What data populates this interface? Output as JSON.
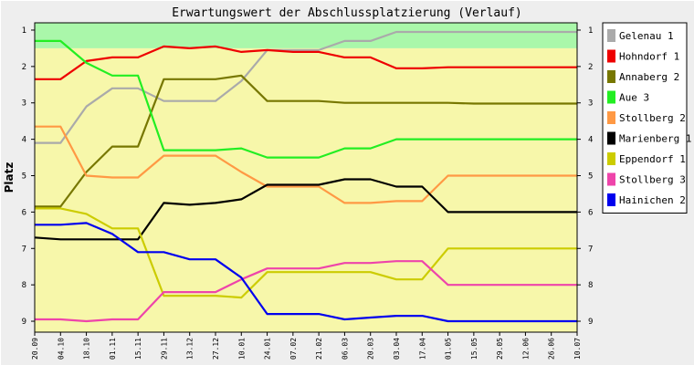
{
  "chart_data": {
    "type": "line",
    "title": "Erwartungswert der Abschlussplatzierung (Verlauf)",
    "xlabel": "",
    "ylabel": "Platz",
    "x": [
      "20.09",
      "04.10",
      "18.10",
      "01.11",
      "15.11",
      "29.11",
      "13.12",
      "27.12",
      "10.01",
      "24.01",
      "07.02",
      "21.02",
      "06.03",
      "20.03",
      "03.04",
      "17.04",
      "01.05",
      "15.05",
      "29.05",
      "12.06",
      "26.06",
      "10.07"
    ],
    "ylim": [
      0.8,
      9.3
    ],
    "y_inverted": true,
    "yticks": [
      1,
      2,
      3,
      4,
      5,
      6,
      7,
      8,
      9
    ],
    "bands": [
      {
        "from": 0.8,
        "to": 1.5,
        "color": "#aaf7aa"
      },
      {
        "from": 1.5,
        "to": 9.3,
        "color": "#f7f7aa"
      }
    ],
    "grid": false,
    "legend_position": "right",
    "series": [
      {
        "name": "Gelenau 1",
        "color": "#aaaaaa",
        "values": [
          4.1,
          4.1,
          3.1,
          2.6,
          2.6,
          2.95,
          2.95,
          2.95,
          2.4,
          1.55,
          1.55,
          1.55,
          1.3,
          1.3,
          1.05,
          1.05,
          1.05,
          1.05,
          1.05,
          1.05,
          1.05,
          1.05
        ]
      },
      {
        "name": "Hohndorf 1",
        "color": "#ee0000",
        "values": [
          2.35,
          2.35,
          1.85,
          1.75,
          1.75,
          1.45,
          1.5,
          1.45,
          1.6,
          1.55,
          1.6,
          1.6,
          1.75,
          1.75,
          2.05,
          2.05,
          2.02,
          2.02,
          2.02,
          2.02,
          2.02,
          2.02
        ]
      },
      {
        "name": "Annaberg 2",
        "color": "#777700",
        "values": [
          5.85,
          5.85,
          4.9,
          4.2,
          4.2,
          2.35,
          2.35,
          2.35,
          2.25,
          2.95,
          2.95,
          2.95,
          3.0,
          3.0,
          3.0,
          3.0,
          3.0,
          3.02,
          3.02,
          3.02,
          3.02,
          3.02
        ]
      },
      {
        "name": "Aue 3",
        "color": "#22ee22",
        "values": [
          1.3,
          1.3,
          1.9,
          2.25,
          2.25,
          4.3,
          4.3,
          4.3,
          4.25,
          4.5,
          4.5,
          4.5,
          4.25,
          4.25,
          4.0,
          4.0,
          4.0,
          4.0,
          4.0,
          4.0,
          4.0,
          4.0
        ]
      },
      {
        "name": "Stollberg 2",
        "color": "#ff9944",
        "values": [
          3.65,
          3.65,
          5.0,
          5.05,
          5.05,
          4.45,
          4.45,
          4.45,
          4.9,
          5.3,
          5.3,
          5.3,
          5.75,
          5.75,
          5.7,
          5.7,
          5.0,
          5.0,
          5.0,
          5.0,
          5.0,
          5.0
        ]
      },
      {
        "name": "Marienberg 1",
        "color": "#000000",
        "values": [
          6.7,
          6.75,
          6.75,
          6.75,
          6.75,
          5.75,
          5.8,
          5.75,
          5.65,
          5.25,
          5.25,
          5.25,
          5.1,
          5.1,
          5.3,
          5.3,
          6.0,
          6.0,
          6.0,
          6.0,
          6.0,
          6.0
        ]
      },
      {
        "name": "Eppendorf 1",
        "color": "#cccc00",
        "values": [
          5.9,
          5.9,
          6.05,
          6.45,
          6.45,
          8.3,
          8.3,
          8.3,
          8.35,
          7.65,
          7.65,
          7.65,
          7.65,
          7.65,
          7.85,
          7.85,
          7.0,
          7.0,
          7.0,
          7.0,
          7.0,
          7.0
        ]
      },
      {
        "name": "Stollberg 3",
        "color": "#ee44aa",
        "values": [
          8.95,
          8.95,
          9.0,
          8.95,
          8.95,
          8.2,
          8.2,
          8.2,
          7.85,
          7.55,
          7.55,
          7.55,
          7.4,
          7.4,
          7.35,
          7.35,
          8.0,
          8.0,
          8.0,
          8.0,
          8.0,
          8.0
        ]
      },
      {
        "name": "Hainichen 2",
        "color": "#0000ee",
        "values": [
          6.35,
          6.35,
          6.3,
          6.6,
          7.1,
          7.1,
          7.3,
          7.3,
          7.8,
          8.8,
          8.8,
          8.8,
          8.95,
          8.9,
          8.85,
          8.85,
          9.0,
          9.0,
          9.0,
          9.0,
          9.0,
          9.0
        ]
      }
    ]
  }
}
